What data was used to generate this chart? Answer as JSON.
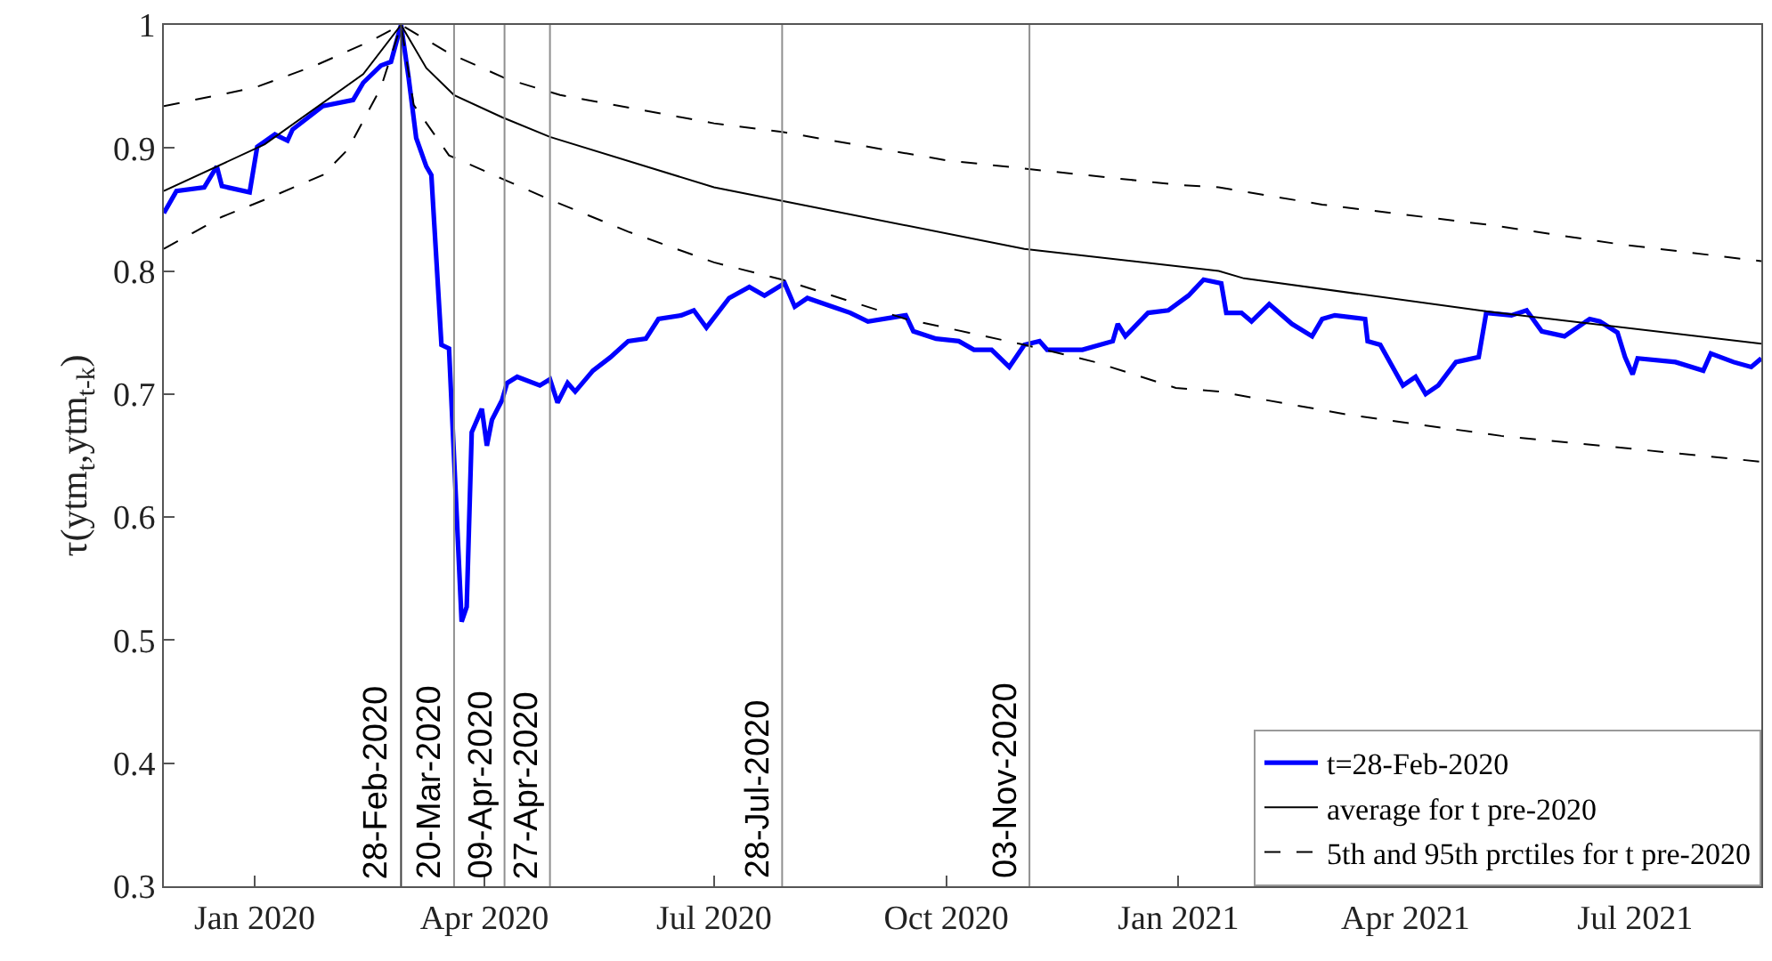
{
  "chart_data": {
    "type": "line",
    "ylabel": "τ(ytm$_{t}$,ytm$_{t-k}$)",
    "xlim": [
      "2019-11-26",
      "2021-08-20"
    ],
    "xticks": [
      {
        "value": "2020-01-01",
        "label": "Jan 2020"
      },
      {
        "value": "2020-04-01",
        "label": "Apr 2020"
      },
      {
        "value": "2020-07-01",
        "label": "Jul 2020"
      },
      {
        "value": "2020-10-01",
        "label": "Oct 2020"
      },
      {
        "value": "2021-01-01",
        "label": "Jan 2021"
      },
      {
        "value": "2021-04-01",
        "label": "Apr 2021"
      },
      {
        "value": "2021-07-01",
        "label": "Jul 2021"
      }
    ],
    "ylim": [
      0.3,
      1
    ],
    "yticks": [
      0.3,
      0.4,
      0.5,
      0.6,
      0.7,
      0.8,
      0.9,
      1
    ],
    "legend": "bottom right",
    "marker": "none",
    "series": [
      {
        "name": "t=28-Feb-2020",
        "color": "#0000ff",
        "line_style": "solid",
        "x": [
          "2019-11-26",
          "2019-12-01",
          "2019-12-12",
          "2019-12-17",
          "2019-12-19",
          "2019-12-30",
          "2020-01-02",
          "2020-01-09",
          "2020-01-14",
          "2020-01-16",
          "2020-01-28",
          "2020-02-09",
          "2020-02-13",
          "2020-02-20",
          "2020-02-24",
          "2020-02-28",
          "2020-03-02",
          "2020-03-05",
          "2020-03-09",
          "2020-03-11",
          "2020-03-15",
          "2020-03-18",
          "2020-03-23",
          "2020-03-25",
          "2020-03-27",
          "2020-03-31",
          "2020-04-02",
          "2020-04-04",
          "2020-04-08",
          "2020-04-10",
          "2020-04-14",
          "2020-04-23",
          "2020-04-27",
          "2020-04-30",
          "2020-05-04",
          "2020-05-07",
          "2020-05-14",
          "2020-05-21",
          "2020-05-28",
          "2020-06-04",
          "2020-06-09",
          "2020-06-18",
          "2020-06-23",
          "2020-06-28",
          "2020-07-07",
          "2020-07-15",
          "2020-07-21",
          "2020-07-29",
          "2020-08-02",
          "2020-08-07",
          "2020-08-17",
          "2020-08-24",
          "2020-08-31",
          "2020-09-15",
          "2020-09-18",
          "2020-09-27",
          "2020-10-06",
          "2020-10-12",
          "2020-10-19",
          "2020-10-26",
          "2020-11-01",
          "2020-11-07",
          "2020-11-10",
          "2020-11-24",
          "2020-12-06",
          "2020-12-08",
          "2020-12-11",
          "2020-12-20",
          "2020-12-28",
          "2021-01-05",
          "2021-01-11",
          "2021-01-18",
          "2021-01-20",
          "2021-01-26",
          "2021-01-30",
          "2021-02-06",
          "2021-02-15",
          "2021-02-23",
          "2021-02-27",
          "2021-03-04",
          "2021-03-16",
          "2021-03-17",
          "2021-03-22",
          "2021-03-31",
          "2021-04-05",
          "2021-04-09",
          "2021-04-14",
          "2021-04-21",
          "2021-04-30",
          "2021-05-03",
          "2021-05-13",
          "2021-05-19",
          "2021-05-25",
          "2021-06-03",
          "2021-06-13",
          "2021-06-17",
          "2021-06-24",
          "2021-06-27",
          "2021-06-30",
          "2021-07-02",
          "2021-07-17",
          "2021-07-28",
          "2021-07-31",
          "2021-08-09",
          "2021-08-16",
          "2021-08-20"
        ],
        "values": [
          0.847,
          0.865,
          0.868,
          0.885,
          0.869,
          0.864,
          0.901,
          0.911,
          0.906,
          0.915,
          0.934,
          0.939,
          0.953,
          0.967,
          0.97,
          1.0,
          0.957,
          0.908,
          0.885,
          0.878,
          0.74,
          0.737,
          0.515,
          0.527,
          0.669,
          0.688,
          0.658,
          0.679,
          0.695,
          0.709,
          0.714,
          0.707,
          0.712,
          0.693,
          0.709,
          0.702,
          0.719,
          0.73,
          0.743,
          0.745,
          0.761,
          0.764,
          0.768,
          0.754,
          0.778,
          0.787,
          0.78,
          0.79,
          0.771,
          0.778,
          0.771,
          0.766,
          0.759,
          0.764,
          0.751,
          0.745,
          0.743,
          0.736,
          0.736,
          0.722,
          0.74,
          0.743,
          0.736,
          0.736,
          0.743,
          0.757,
          0.747,
          0.766,
          0.768,
          0.78,
          0.793,
          0.79,
          0.766,
          0.766,
          0.759,
          0.773,
          0.757,
          0.747,
          0.761,
          0.764,
          0.761,
          0.743,
          0.74,
          0.707,
          0.714,
          0.7,
          0.707,
          0.726,
          0.73,
          0.766,
          0.764,
          0.768,
          0.751,
          0.747,
          0.761,
          0.759,
          0.75,
          0.73,
          0.716,
          0.729,
          0.726,
          0.719,
          0.733,
          0.726,
          0.722,
          0.729
        ]
      },
      {
        "name": "average for t pre-2020",
        "color": "#000000",
        "line_style": "solid",
        "x": [
          "2019-11-26",
          "2020-01-05",
          "2020-02-13",
          "2020-02-28",
          "2020-03-09",
          "2020-03-20",
          "2020-04-08",
          "2020-04-27",
          "2020-07-01",
          "2020-07-28",
          "2020-11-01",
          "2021-01-17",
          "2021-01-27",
          "2021-05-04",
          "2021-08-20"
        ],
        "values": [
          0.865,
          0.903,
          0.96,
          1.0,
          0.965,
          0.943,
          0.925,
          0.909,
          0.868,
          0.857,
          0.818,
          0.8,
          0.794,
          0.767,
          0.741
        ]
      },
      {
        "name": "5th and 95th prctiles for t pre-2020",
        "color": "#000000",
        "line_style": "dashed",
        "x": [
          "2019-11-26",
          "2020-01-01",
          "2020-01-25",
          "2020-02-15",
          "2020-02-28",
          "2020-03-18",
          "2020-04-10",
          "2020-05-01",
          "2020-07-01",
          "2020-07-28",
          "2020-10-01",
          "2021-01-01",
          "2021-01-17",
          "2021-02-27",
          "2021-05-06",
          "2021-06-24",
          "2021-08-20"
        ],
        "values": [
          0.934,
          0.949,
          0.967,
          0.986,
          1.0,
          0.977,
          0.956,
          0.943,
          0.92,
          0.913,
          0.89,
          0.87,
          0.868,
          0.854,
          0.837,
          0.822,
          0.808
        ]
      },
      {
        "color": "#000000",
        "line_style": "dashed",
        "x": [
          "2019-11-26",
          "2019-12-19",
          "2020-01-05",
          "2020-01-28",
          "2020-02-07",
          "2020-02-20",
          "2020-02-28",
          "2020-03-04",
          "2020-03-18",
          "2020-04-08",
          "2020-04-27",
          "2020-05-28",
          "2020-07-01",
          "2020-07-28",
          "2020-09-15",
          "2020-11-01",
          "2020-11-29",
          "2020-12-31",
          "2021-01-17",
          "2021-03-10",
          "2021-05-09",
          "2021-07-17",
          "2021-08-20"
        ],
        "values": [
          0.818,
          0.844,
          0.858,
          0.878,
          0.899,
          0.949,
          1.0,
          0.935,
          0.894,
          0.875,
          0.858,
          0.832,
          0.807,
          0.793,
          0.761,
          0.74,
          0.726,
          0.705,
          0.702,
          0.683,
          0.666,
          0.652,
          0.645
        ]
      }
    ],
    "ref_lines": [
      {
        "axis": "x",
        "value": "2020-02-28",
        "label": "28-Feb-2020",
        "color": "#404040"
      },
      {
        "axis": "x",
        "value": "2020-03-20",
        "label": "20-Mar-2020",
        "color": "#909090"
      },
      {
        "axis": "x",
        "value": "2020-04-09",
        "label": "09-Apr-2020",
        "color": "#909090"
      },
      {
        "axis": "x",
        "value": "2020-04-27",
        "label": "27-Apr-2020",
        "color": "#909090"
      },
      {
        "axis": "x",
        "value": "2020-07-28",
        "label": "28-Jul-2020",
        "color": "#909090"
      },
      {
        "axis": "x",
        "value": "2020-11-03",
        "label": "03-Nov-2020",
        "color": "#909090"
      }
    ]
  }
}
